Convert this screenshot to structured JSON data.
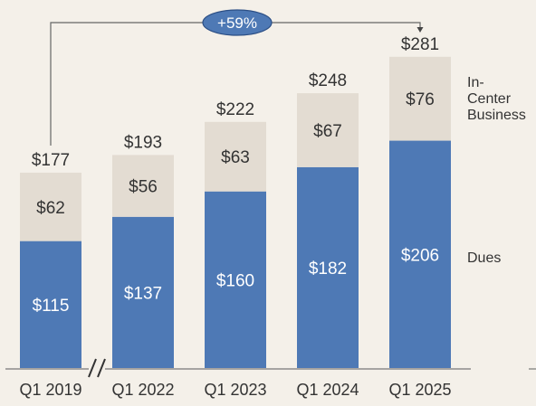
{
  "chart_data": {
    "type": "bar",
    "stacked": true,
    "categories": [
      "Q1 2019",
      "Q1 2022",
      "Q1 2023",
      "Q1 2024",
      "Q1 2025"
    ],
    "series": [
      {
        "name": "Dues",
        "values": [
          115,
          137,
          160,
          182,
          206
        ],
        "labels": [
          "$115",
          "$137",
          "$160",
          "$182",
          "$206"
        ],
        "color": "#4e79b5"
      },
      {
        "name": "In-Center Business",
        "values": [
          62,
          56,
          63,
          67,
          76
        ],
        "labels": [
          "$62",
          "$56",
          "$63",
          "$67",
          "$76"
        ],
        "color": "#e3dcd2"
      }
    ],
    "totals": [
      177,
      193,
      222,
      248,
      281
    ],
    "total_labels": [
      "$177",
      "$193",
      "$222",
      "$248",
      "$281"
    ],
    "legend_labels": {
      "in_center": [
        "In-",
        "Center",
        "Business"
      ],
      "dues": "Dues"
    },
    "annotation": {
      "text": "+59%",
      "from": "Q1 2019",
      "to": "Q1 2025",
      "color": "#4e79b5"
    },
    "axis_break": {
      "after": "Q1 2019",
      "symbol": "//"
    },
    "ylim": [
      0,
      281
    ],
    "grid": false,
    "text_color": "#333333",
    "axis_color": "#777777"
  }
}
